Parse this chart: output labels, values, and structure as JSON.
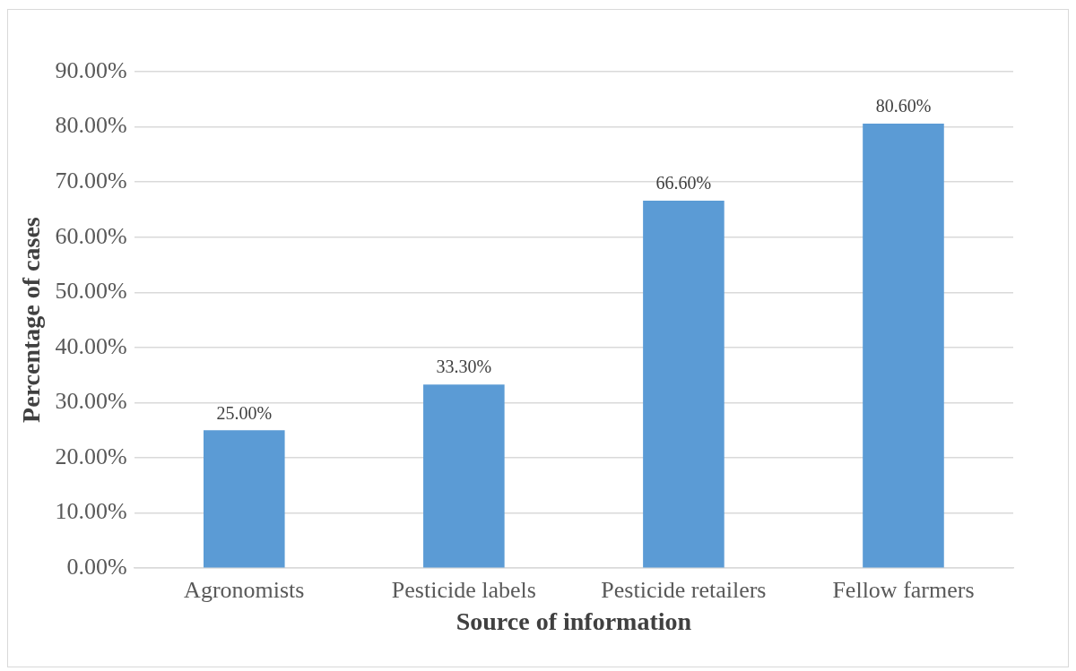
{
  "chart_data": {
    "type": "bar",
    "xlabel": "Source of information",
    "ylabel": "Percentage of cases",
    "categories": [
      "Agronomists",
      "Pesticide labels",
      "Pesticide retailers",
      "Fellow farmers"
    ],
    "values": [
      25.0,
      33.3,
      66.6,
      80.6
    ],
    "value_labels": [
      "25.00%",
      "33.30%",
      "66.60%",
      "80.60%"
    ],
    "color": "#5b9bd5",
    "ylim": [
      0,
      90
    ],
    "yticks": [
      {
        "value": 0,
        "label": "0.00%"
      },
      {
        "value": 10,
        "label": "10.00%"
      },
      {
        "value": 20,
        "label": "20.00%"
      },
      {
        "value": 30,
        "label": "30.00%"
      },
      {
        "value": 40,
        "label": "40.00%"
      },
      {
        "value": 50,
        "label": "50.00%"
      },
      {
        "value": 60,
        "label": "60.00%"
      },
      {
        "value": 70,
        "label": "70.00%"
      },
      {
        "value": 80,
        "label": "80.00%"
      },
      {
        "value": 90,
        "label": "90.00%"
      }
    ],
    "grid": "y",
    "legend": false
  }
}
